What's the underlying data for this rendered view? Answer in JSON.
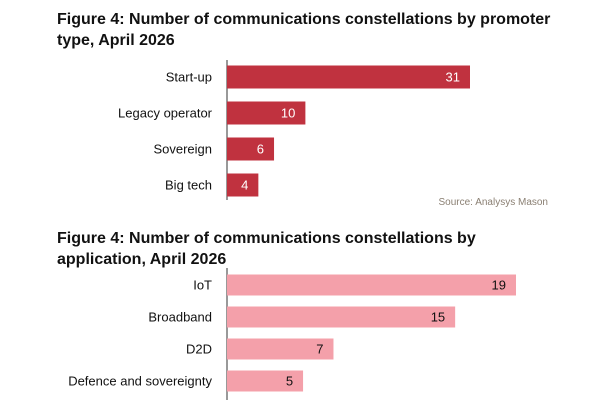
{
  "chart_data": [
    {
      "type": "bar",
      "orientation": "horizontal",
      "title": "Figure 4: Number of communications constellations by promoter type, April 2026",
      "categories": [
        "Start-up",
        "Legacy operator",
        "Sovereign",
        "Big tech"
      ],
      "values": [
        31,
        10,
        6,
        4
      ],
      "color": "#c0323f",
      "value_label_color": "#ffffff",
      "source": "Source: Analysys Mason",
      "xlim": [
        0,
        31
      ],
      "grid": false
    },
    {
      "type": "bar",
      "orientation": "horizontal",
      "title": "Figure 4: Number of communications constellations by application, April 2026",
      "categories": [
        "IoT",
        "Broadband",
        "D2D",
        "Defence and sovereignty"
      ],
      "values": [
        19,
        15,
        7,
        5
      ],
      "color": "#f4a0aa",
      "value_label_color": "#111111",
      "xlim": [
        0,
        19
      ],
      "grid": false
    }
  ]
}
